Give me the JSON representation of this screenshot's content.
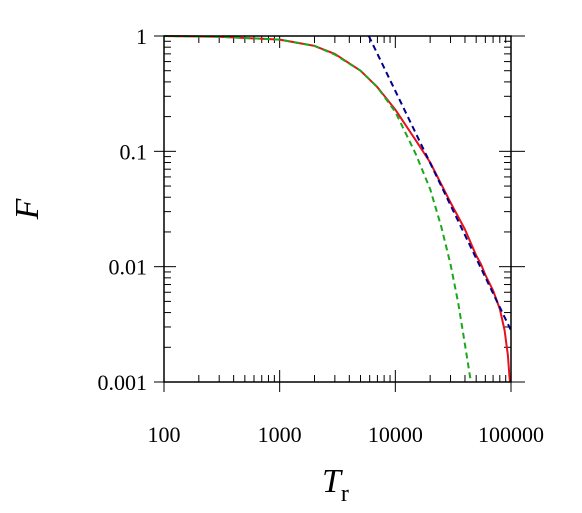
{
  "chart_data": {
    "type": "line",
    "xscale": "log",
    "yscale": "log",
    "xlim": [
      100,
      100000
    ],
    "ylim": [
      0.001,
      1
    ],
    "xlabel": "T",
    "xlabel_sub": "r",
    "ylabel": "F",
    "xticks": [
      {
        "value": 100,
        "label": "100"
      },
      {
        "value": 1000,
        "label": "1000"
      },
      {
        "value": 10000,
        "label": "10000"
      },
      {
        "value": 100000,
        "label": "100000"
      }
    ],
    "yticks": [
      {
        "value": 1,
        "label": "1"
      },
      {
        "value": 0.1,
        "label": "0.1"
      },
      {
        "value": 0.01,
        "label": "0.01"
      },
      {
        "value": 0.001,
        "label": "0.001"
      }
    ],
    "grid": false,
    "series": [
      {
        "color": "#e8101a",
        "dash": "solid",
        "points": [
          [
            100,
            1.0
          ],
          [
            300,
            0.985
          ],
          [
            1000,
            0.93
          ],
          [
            2000,
            0.82
          ],
          [
            3000,
            0.7
          ],
          [
            5000,
            0.5
          ],
          [
            7000,
            0.36
          ],
          [
            10000,
            0.23
          ],
          [
            15000,
            0.125
          ],
          [
            20000,
            0.08
          ],
          [
            30000,
            0.036
          ],
          [
            40000,
            0.021
          ],
          [
            50000,
            0.0125
          ],
          [
            55000,
            0.0105
          ],
          [
            60000,
            0.0085
          ],
          [
            70000,
            0.0062
          ],
          [
            80000,
            0.0043
          ],
          [
            88000,
            0.0028
          ],
          [
            94000,
            0.0017
          ],
          [
            97000,
            0.0011
          ],
          [
            98000,
            0.001
          ]
        ]
      },
      {
        "color": "#1aa81a",
        "dash": "dashed",
        "points": [
          [
            100,
            1.0
          ],
          [
            300,
            0.985
          ],
          [
            1000,
            0.93
          ],
          [
            2000,
            0.82
          ],
          [
            3000,
            0.69
          ],
          [
            5000,
            0.5
          ],
          [
            7000,
            0.36
          ],
          [
            10000,
            0.22
          ],
          [
            15000,
            0.095
          ],
          [
            20000,
            0.047
          ],
          [
            25000,
            0.022
          ],
          [
            30000,
            0.0105
          ],
          [
            35000,
            0.0048
          ],
          [
            40000,
            0.0021
          ],
          [
            45000,
            0.001
          ]
        ]
      },
      {
        "color": "#00008b",
        "dash": "dashed",
        "points": [
          [
            5900,
            1.0
          ],
          [
            100000,
            0.0028
          ]
        ]
      }
    ]
  }
}
